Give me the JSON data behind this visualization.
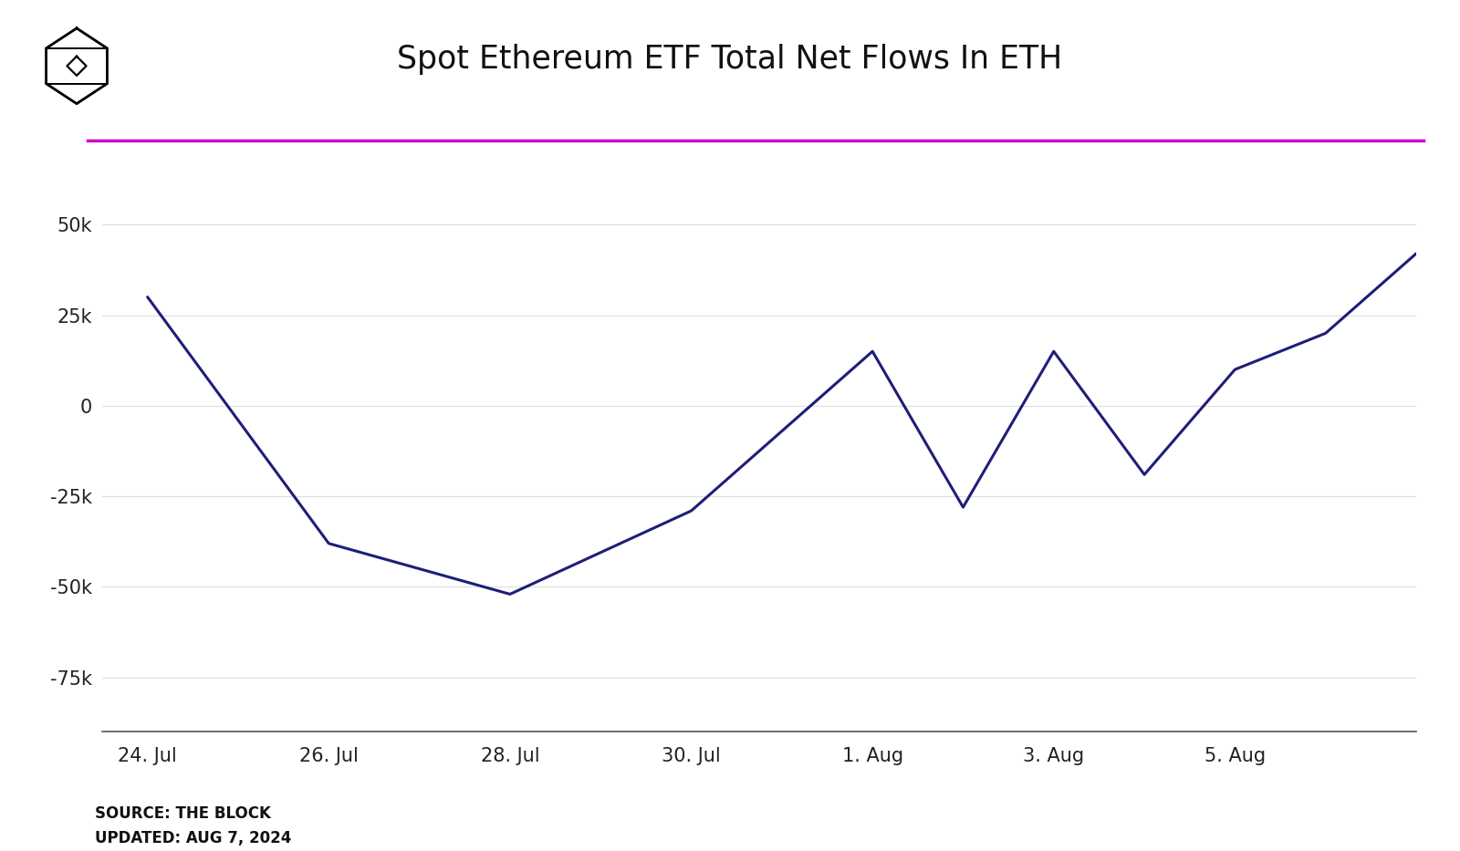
{
  "title": "Spot Ethereum ETF Total Net Flows In ETH",
  "line_color": "#1e1e78",
  "line_width": 2.2,
  "background_color": "#ffffff",
  "magenta_line_color": "#cc00cc",
  "grid_color": "#e0e0e0",
  "source_text": "SOURCE: THE BLOCK\nUPDATED: AUG 7, 2024",
  "x_labels": [
    "24. Jul",
    "26. Jul",
    "28. Jul",
    "30. Jul",
    "1. Aug",
    "3. Aug",
    "5. Aug"
  ],
  "y_ticks": [
    50000,
    25000,
    0,
    -25000,
    -50000,
    -75000
  ],
  "y_tick_labels": [
    "50k",
    "25k",
    "0",
    "-25k",
    "-50k",
    "-75k"
  ],
  "ylim": [
    -90000,
    65000
  ],
  "data_x": [
    0,
    2,
    4,
    6,
    8,
    9,
    10,
    11,
    12,
    13,
    14
  ],
  "data_y": [
    30000,
    -38000,
    -52000,
    -29000,
    15000,
    -28000,
    15000,
    -19000,
    10000,
    20000,
    42000
  ]
}
